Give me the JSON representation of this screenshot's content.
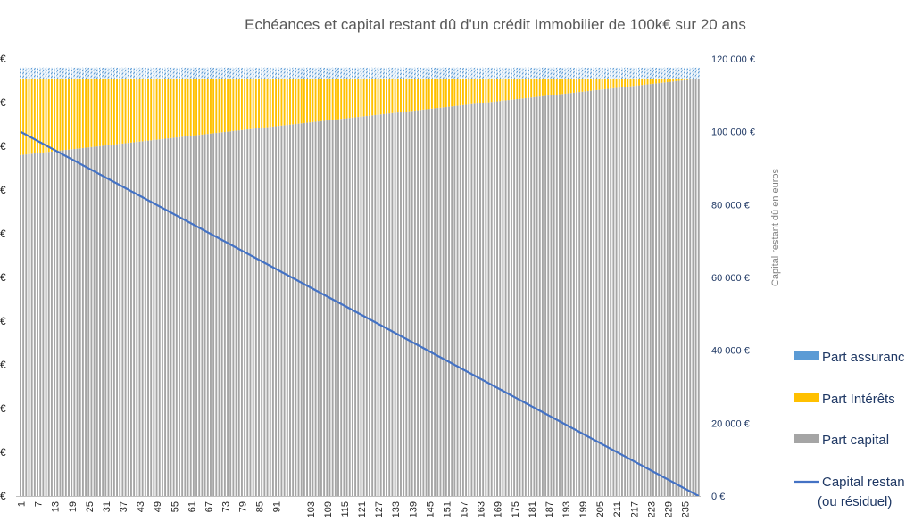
{
  "chart_data": {
    "type": "bar",
    "stacked": true,
    "title": "Echéances et capital restant dû d'un crédit Immobilier de 100k€ sur 20 ans",
    "x": {
      "start": 1,
      "end": 240,
      "tick_labels_visible": [
        "1",
        "7",
        "13",
        "19",
        "25",
        "31",
        "37",
        "43",
        "49",
        "55",
        "61",
        "67",
        "73",
        "79",
        "85",
        "91",
        "103",
        "109",
        "115",
        "121",
        "127",
        "133",
        "139",
        "145",
        "151",
        "157",
        "163",
        "169",
        "175",
        "181",
        "187",
        "193",
        "199",
        "205",
        "211",
        "217",
        "223",
        "229",
        "235"
      ]
    },
    "y_left": {
      "tick_labels_visible": [
        "€",
        "€",
        "€",
        "€",
        "€",
        "€",
        "€",
        "€",
        "€",
        "€",
        "€"
      ],
      "label": ""
    },
    "y_right": {
      "label": "Capital restant dû en euros",
      "min": 0,
      "max": 120000,
      "tick_values": [
        0,
        20000,
        40000,
        60000,
        80000,
        100000,
        120000
      ],
      "tick_labels": [
        "0 €",
        "20 000 €",
        "40 000 €",
        "60 000 €",
        "80 000 €",
        "100 000 €",
        "120 000 €"
      ]
    },
    "series": [
      {
        "name": "Part assurance",
        "color": "#5b9bd5",
        "axis": "left",
        "values_description_fraction_of_axis": {
          "constant": 0.025
        }
      },
      {
        "name": "Part Intérêts",
        "color": "#ffc000",
        "axis": "left",
        "values_fraction_of_axis": {
          "start": 0.175,
          "end": 0.0
        }
      },
      {
        "name": "Part capital",
        "color": "#a5a5a5",
        "axis": "left",
        "values_fraction_of_axis": {
          "start": 0.78,
          "end": 0.955
        }
      },
      {
        "name": "Capital restant dû (ou résiduel)",
        "color": "#4472c4",
        "type": "line",
        "axis": "right",
        "values": {
          "start": 100000,
          "end": 0
        }
      }
    ],
    "legend": [
      {
        "name": "Part assurance",
        "display": "Part assuranc",
        "color": "#5b9bd5",
        "kind": "bar"
      },
      {
        "name": "Part Intérêts",
        "display": "Part Intérêts",
        "color": "#ffc000",
        "kind": "bar"
      },
      {
        "name": "Part capital",
        "display": "Part capital",
        "color": "#a5a5a5",
        "kind": "bar"
      },
      {
        "name": "Capital restant dû (ou résiduel)",
        "display_line1": "Capital restan",
        "display_line2": "(ou résiduel)",
        "color": "#4472c4",
        "kind": "line"
      }
    ],
    "legend_position": "right",
    "grid": false
  }
}
